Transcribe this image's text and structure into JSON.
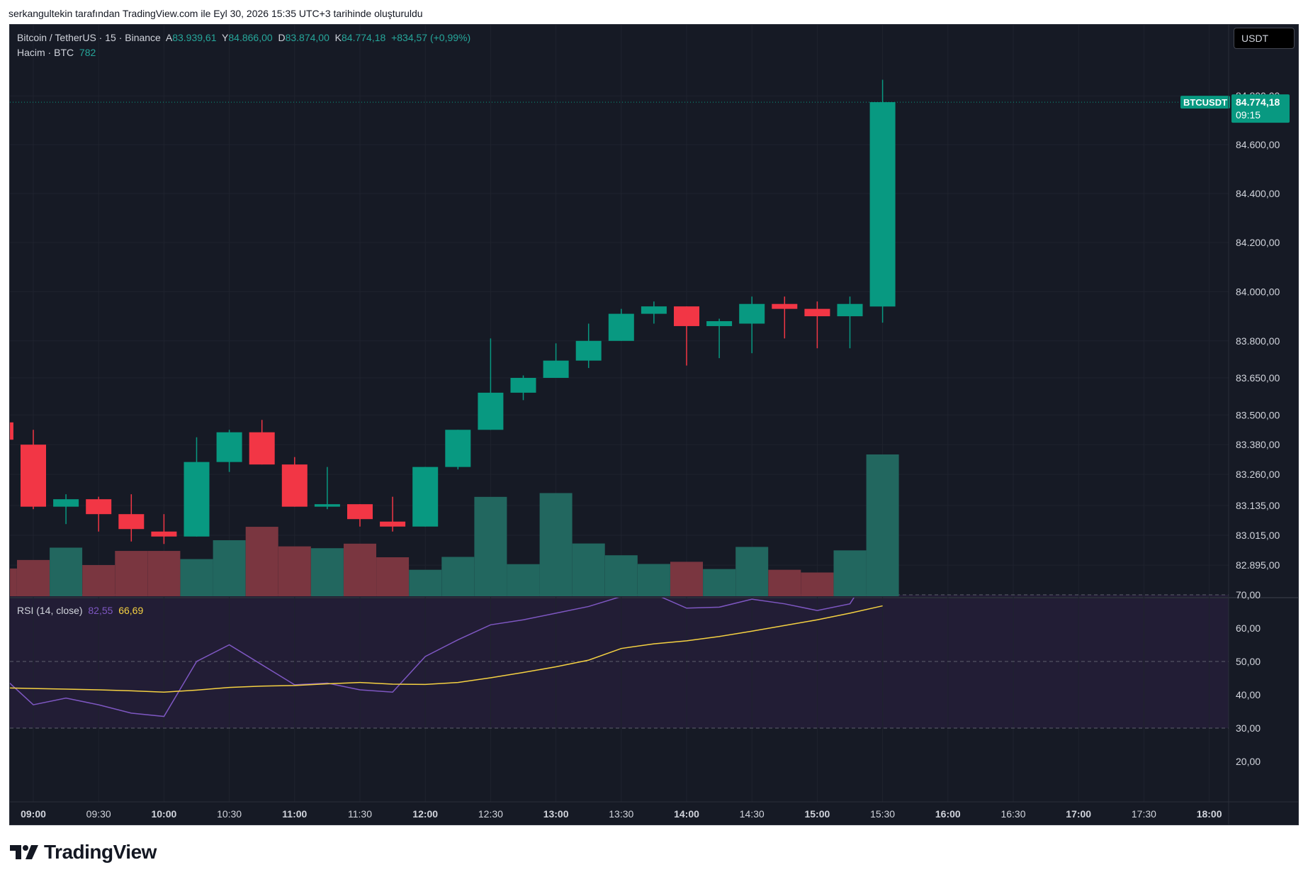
{
  "header": {
    "caption": "serkangultekin tarafından TradingView.com ile Eyl 30, 2026 15:35 UTC+3 tarihinde oluşturuldu"
  },
  "legend": {
    "symbol": "Bitcoin / TetherUS · 15 · Binance",
    "open_label": "A",
    "open_value": "83.939,61",
    "high_label": "Y",
    "high_value": "84.866,00",
    "low_label": "D",
    "low_value": "83.874,00",
    "close_label": "K",
    "close_value": "84.774,18",
    "change": "+834,57 (+0,99%)",
    "volume_label": "Hacim · BTC",
    "volume_value": "782",
    "rsi_label": "RSI (14, close)",
    "rsi_value": "82,55",
    "rsi_ma_value": "66,69"
  },
  "currency_button": "USDT",
  "price_tag": {
    "symbol": "BTCUSDT",
    "price": "84.774,18",
    "countdown": "09:15"
  },
  "branding": {
    "logo_text": "TradingView"
  },
  "colors": {
    "background": "#161a25",
    "up": "#089981",
    "down": "#f23645",
    "volume_up": "#22675f",
    "volume_down": "#7a3640",
    "rsi_line": "#7e57c2",
    "rsi_ma": "#f5d142",
    "rsi_band": "#221d35"
  },
  "chart_data": [
    {
      "type": "candlestick",
      "title": "Bitcoin / TetherUS · 15 · Binance",
      "x": [
        "08:45",
        "09:00",
        "09:15",
        "09:30",
        "09:45",
        "10:00",
        "10:15",
        "10:30",
        "10:45",
        "11:00",
        "11:15",
        "11:30",
        "11:45",
        "12:00",
        "12:15",
        "12:30",
        "12:45",
        "13:00",
        "13:15",
        "13:30",
        "13:45",
        "14:00",
        "14:15",
        "14:30",
        "14:45",
        "15:00",
        "15:15",
        "15:30"
      ],
      "x_tick_labels": [
        "09:00",
        "09:30",
        "10:00",
        "10:30",
        "11:00",
        "11:30",
        "12:00",
        "12:30",
        "13:00",
        "13:30",
        "14:00",
        "14:30",
        "15:00",
        "15:30",
        "16:00",
        "16:30",
        "17:00",
        "17:30",
        "18:00"
      ],
      "x_tick_bold": [
        "09:00",
        "10:00",
        "11:00",
        "12:00",
        "13:00",
        "14:00",
        "15:00",
        "16:00",
        "17:00",
        "18:00"
      ],
      "y_tick_labels": [
        "82.895,00",
        "83.015,00",
        "83.135,00",
        "83.260,00",
        "83.380,00",
        "83.500,00",
        "83.650,00",
        "83.800,00",
        "84.000,00",
        "84.200,00",
        "84.400,00",
        "84.600,00",
        "84.800,00"
      ],
      "y_scale": "log",
      "ohlc": [
        [
          83470,
          83490,
          83400,
          83400
        ],
        [
          83380,
          83440,
          83120,
          83130
        ],
        [
          83130,
          83180,
          83060,
          83160
        ],
        [
          83160,
          83170,
          83030,
          83100
        ],
        [
          83100,
          83180,
          82990,
          83040
        ],
        [
          83030,
          83100,
          82980,
          83010
        ],
        [
          83010,
          83410,
          83010,
          83310
        ],
        [
          83310,
          83440,
          83270,
          83430
        ],
        [
          83430,
          83480,
          83300,
          83300
        ],
        [
          83300,
          83330,
          83130,
          83130
        ],
        [
          83130,
          83290,
          83120,
          83140
        ],
        [
          83140,
          83140,
          83050,
          83080
        ],
        [
          83070,
          83170,
          83030,
          83050
        ],
        [
          83050,
          83290,
          83050,
          83290
        ],
        [
          83290,
          83440,
          83280,
          83440
        ],
        [
          83440,
          83810,
          83440,
          83590
        ],
        [
          83590,
          83660,
          83560,
          83650
        ],
        [
          83650,
          83790,
          83650,
          83720
        ],
        [
          83720,
          83870,
          83690,
          83800
        ],
        [
          83800,
          83930,
          83800,
          83910
        ],
        [
          83910,
          83960,
          83870,
          83940
        ],
        [
          83940,
          83940,
          83700,
          83860
        ],
        [
          83860,
          83890,
          83730,
          83880
        ],
        [
          83870,
          83980,
          83750,
          83950
        ],
        [
          83950,
          83980,
          83810,
          83930
        ],
        [
          83930,
          83960,
          83770,
          83900
        ],
        [
          83900,
          83980,
          83770,
          83950
        ],
        [
          83939.61,
          84866,
          83874,
          84774.18
        ]
      ]
    },
    {
      "type": "bar",
      "title": "Hacim · BTC",
      "x": [
        "08:45",
        "09:00",
        "09:15",
        "09:30",
        "09:45",
        "10:00",
        "10:15",
        "10:30",
        "10:45",
        "11:00",
        "11:15",
        "11:30",
        "11:45",
        "12:00",
        "12:15",
        "12:30",
        "12:45",
        "13:00",
        "13:15",
        "13:30",
        "13:45",
        "14:00",
        "14:15",
        "14:30",
        "14:45",
        "15:00",
        "15:15",
        "15:30"
      ],
      "values": [
        153,
        200,
        268,
        172,
        250,
        250,
        205,
        309,
        383,
        275,
        265,
        290,
        215,
        146,
        217,
        548,
        177,
        569,
        291,
        226,
        178,
        190,
        150,
        272,
        146,
        131,
        253,
        782
      ],
      "direction": [
        "down",
        "down",
        "up",
        "down",
        "down",
        "down",
        "up",
        "up",
        "down",
        "down",
        "up",
        "down",
        "down",
        "up",
        "up",
        "up",
        "up",
        "up",
        "up",
        "up",
        "up",
        "down",
        "up",
        "up",
        "down",
        "down",
        "up",
        "up"
      ]
    },
    {
      "type": "line",
      "title": "RSI (14, close)",
      "x": [
        "08:45",
        "09:00",
        "09:15",
        "09:30",
        "09:45",
        "10:00",
        "10:15",
        "10:30",
        "10:45",
        "11:00",
        "11:15",
        "11:30",
        "11:45",
        "12:00",
        "12:15",
        "12:30",
        "12:45",
        "13:00",
        "13:15",
        "13:30",
        "13:45",
        "14:00",
        "14:15",
        "14:30",
        "14:45",
        "15:00",
        "15:15",
        "15:30"
      ],
      "y_tick_labels": [
        "20,00",
        "30,00",
        "40,00",
        "50,00",
        "60,00",
        "70,00"
      ],
      "band": [
        30,
        70
      ],
      "midline": 50,
      "series": [
        {
          "name": "RSI",
          "values": [
            46,
            37,
            39,
            37,
            34.5,
            33.5,
            50,
            55,
            49,
            43,
            43.5,
            41.5,
            40.8,
            51.5,
            56.5,
            61,
            62.5,
            64.5,
            66.5,
            69.5,
            70.3,
            66,
            66.3,
            68.7,
            67.3,
            65.3,
            67.3,
            82.55
          ]
        },
        {
          "name": "MA",
          "values": [
            42.1,
            41.9,
            41.7,
            41.5,
            41.2,
            40.8,
            41.4,
            42.2,
            42.6,
            42.8,
            43.3,
            43.7,
            43.2,
            43.1,
            43.7,
            45.1,
            46.7,
            48.4,
            50.4,
            53.9,
            55.3,
            56.2,
            57.5,
            59.1,
            60.8,
            62.5,
            64.5,
            66.69
          ]
        }
      ]
    }
  ]
}
